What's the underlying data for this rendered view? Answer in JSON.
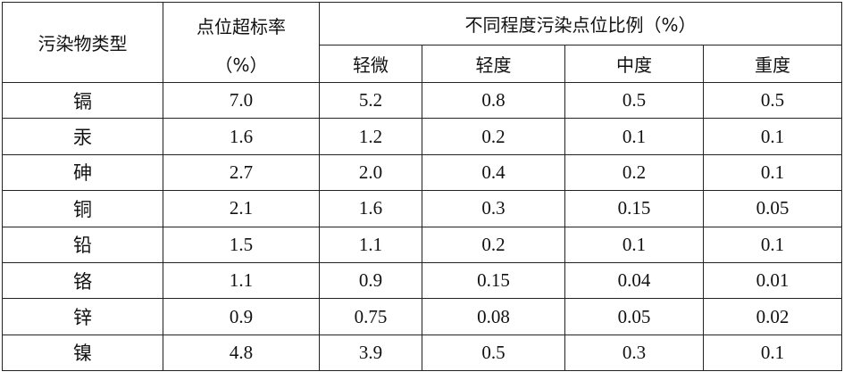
{
  "header": {
    "pollutant": "污染物类型",
    "rate": "点位超标率",
    "rate_unit": "（%）",
    "ratio": "不同程度污染点位比例（%）",
    "levels": [
      "轻微",
      "轻度",
      "中度",
      "重度"
    ]
  },
  "table": {
    "rows": [
      [
        "镉",
        "7.0",
        "5.2",
        "0.8",
        "0.5",
        "0.5"
      ],
      [
        "汞",
        "1.6",
        "1.2",
        "0.2",
        "0.1",
        "0.1"
      ],
      [
        "砷",
        "2.7",
        "2.0",
        "0.4",
        "0.2",
        "0.1"
      ],
      [
        "铜",
        "2.1",
        "1.6",
        "0.3",
        "0.15",
        "0.05"
      ],
      [
        "铅",
        "1.5",
        "1.1",
        "0.2",
        "0.1",
        "0.1"
      ],
      [
        "铬",
        "1.1",
        "0.9",
        "0.15",
        "0.04",
        "0.01"
      ],
      [
        "锌",
        "0.9",
        "0.75",
        "0.08",
        "0.05",
        "0.02"
      ],
      [
        "镍",
        "4.8",
        "3.9",
        "0.5",
        "0.3",
        "0.1"
      ]
    ]
  }
}
